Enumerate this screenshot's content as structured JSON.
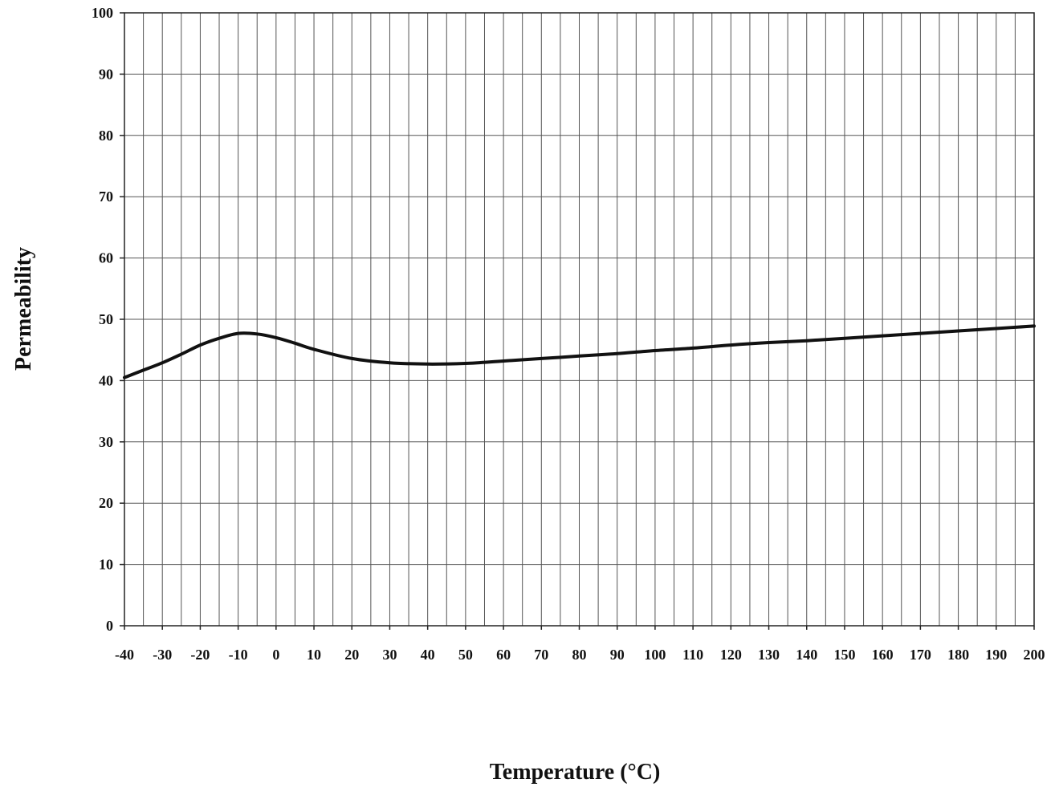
{
  "chart_data": {
    "type": "line",
    "title": "",
    "xlabel": "Temperature (°C)",
    "ylabel": "Permeability",
    "xlim": [
      -40,
      200
    ],
    "ylim": [
      0,
      100
    ],
    "grid": true,
    "x_minor_step": 5,
    "x_ticks": [
      -40,
      -30,
      -20,
      -10,
      0,
      10,
      20,
      30,
      40,
      50,
      60,
      70,
      80,
      90,
      100,
      110,
      120,
      130,
      140,
      150,
      160,
      170,
      180,
      190,
      200
    ],
    "x_tick_labels": [
      "-40",
      "-30",
      "-20",
      "-10",
      "0",
      "10",
      "20",
      "30",
      "40",
      "50",
      "60",
      "70",
      "80",
      "90",
      "100",
      "110",
      "120",
      "130",
      "140",
      "150",
      "160",
      "170",
      "180",
      "190",
      "200"
    ],
    "y_ticks": [
      0,
      10,
      20,
      30,
      40,
      50,
      60,
      70,
      80,
      90,
      100
    ],
    "y_tick_labels": [
      "0",
      "10",
      "20",
      "30",
      "40",
      "50",
      "60",
      "70",
      "80",
      "90",
      "100"
    ],
    "series": [
      {
        "color": "#111111",
        "x": [
          -40,
          -35,
          -30,
          -25,
          -20,
          -15,
          -10,
          -5,
          0,
          5,
          10,
          20,
          30,
          40,
          50,
          60,
          70,
          80,
          90,
          100,
          110,
          120,
          130,
          140,
          150,
          160,
          170,
          180,
          190,
          200
        ],
        "y": [
          40.5,
          41.7,
          42.9,
          44.3,
          45.8,
          46.9,
          47.7,
          47.6,
          47.0,
          46.1,
          45.1,
          43.6,
          42.9,
          42.7,
          42.8,
          43.2,
          43.6,
          44.0,
          44.4,
          44.9,
          45.3,
          45.8,
          46.2,
          46.5,
          46.9,
          47.3,
          47.7,
          48.1,
          48.5,
          48.9
        ]
      }
    ]
  }
}
